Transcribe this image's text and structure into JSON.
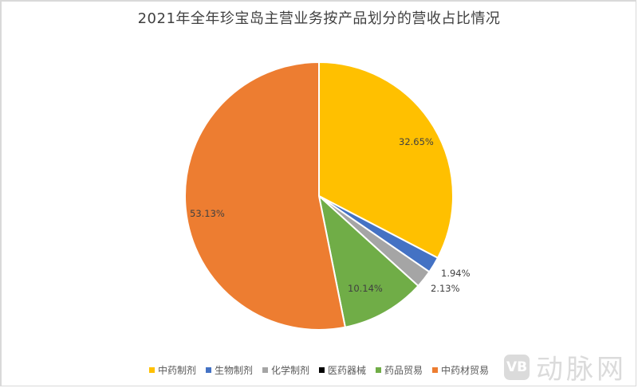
{
  "title": "2021年全年珍宝岛主营业务按产品划分的营收占比情况",
  "legend": [
    {
      "label": "中药制剂",
      "color": "#FFC000"
    },
    {
      "label": "生物制剂",
      "color": "#4472C4"
    },
    {
      "label": "化学制剂",
      "color": "#A5A5A5"
    },
    {
      "label": "医药器械",
      "color": "#000000"
    },
    {
      "label": "药品贸易",
      "color": "#70AD47"
    },
    {
      "label": "中药材贸易",
      "color": "#ED7D31"
    }
  ],
  "labels": {
    "zhongyao": "32.65%",
    "shengwu": "1.94%",
    "huaxue": "2.13%",
    "yaopin": "10.14%",
    "zhongyaocai": "53.13%"
  },
  "watermark": {
    "logo": "VB",
    "text": "动脉网"
  },
  "chart_data": {
    "type": "pie",
    "title": "2021年全年珍宝岛主营业务按产品划分的营收占比情况",
    "categories": [
      "中药制剂",
      "生物制剂",
      "化学制剂",
      "医药器械",
      "药品贸易",
      "中药材贸易"
    ],
    "values": [
      32.65,
      1.94,
      2.13,
      0.0,
      10.14,
      53.13
    ],
    "colors": [
      "#FFC000",
      "#4472C4",
      "#A5A5A5",
      "#000000",
      "#70AD47",
      "#ED7D31"
    ],
    "unit": "%",
    "legend_position": "bottom",
    "start_angle": "12 o'clock, clockwise"
  }
}
